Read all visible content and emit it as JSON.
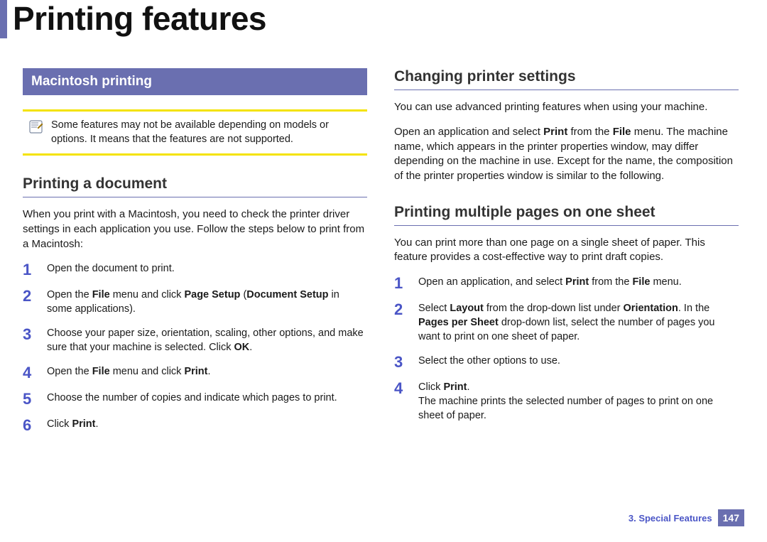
{
  "colors": {
    "accent": "#6a6fb0",
    "step_number": "#4a55c6",
    "note_rule": "#f4e300",
    "text": "#1a1a1a",
    "bg": "#ffffff"
  },
  "typography": {
    "title_pt": 46,
    "subheading_pt": 21,
    "body_pt": 15,
    "step_num_pt": 22,
    "banner_pt": 19,
    "footer_pt": 13
  },
  "page": {
    "title": "Printing features"
  },
  "left": {
    "banner": "Macintosh printing",
    "note": "Some features may not be available depending on models or options. It means that the features are not supported.",
    "sec1": {
      "heading": "Printing a document",
      "intro": "When you print with a Macintosh, you need to check the printer driver settings in each application you use. Follow the steps below to print from a Macintosh:",
      "steps": [
        {
          "n": "1",
          "html": "Open the document to print."
        },
        {
          "n": "2",
          "html": "Open the <b>File</b> menu and click <b>Page Setup</b> (<b>Document Setup</b> in some applications)."
        },
        {
          "n": "3",
          "html": "Choose your paper size, orientation, scaling, other options, and make sure that your machine is selected. Click <b>OK</b>."
        },
        {
          "n": "4",
          "html": "Open the <b>File</b> menu and click <b>Print</b>."
        },
        {
          "n": "5",
          "html": "Choose the number of copies and indicate which pages to print."
        },
        {
          "n": "6",
          "html": "Click <b>Print</b>."
        }
      ]
    }
  },
  "right": {
    "sec1": {
      "heading": "Changing printer settings",
      "p1": "You can use advanced printing features when using your machine.",
      "p2_html": "Open an application and select <b>Print</b> from the <b>File</b> menu. The machine name, which appears in the printer properties window, may differ depending on the machine in use. Except for the name, the composition of the printer properties window is similar to the following."
    },
    "sec2": {
      "heading": "Printing multiple pages on one sheet",
      "intro": "You can print more than one page on a single sheet of paper. This feature provides a cost-effective way to print draft copies.",
      "steps": [
        {
          "n": "1",
          "html": "Open an application, and select <b>Print</b> from the <b>File</b> menu."
        },
        {
          "n": "2",
          "html": "Select <b>Layout</b> from the drop-down list under <b>Orientation</b>. In the <b>Pages per Sheet</b> drop-down list, select the number of pages you want to print on one sheet of paper."
        },
        {
          "n": "3",
          "html": "Select the other options to use."
        },
        {
          "n": "4",
          "html": "Click <b>Print</b>.<br>The machine prints the selected number of pages to print on one sheet of paper."
        }
      ]
    }
  },
  "footer": {
    "chapter": "3.  Special Features",
    "page_number": "147"
  }
}
